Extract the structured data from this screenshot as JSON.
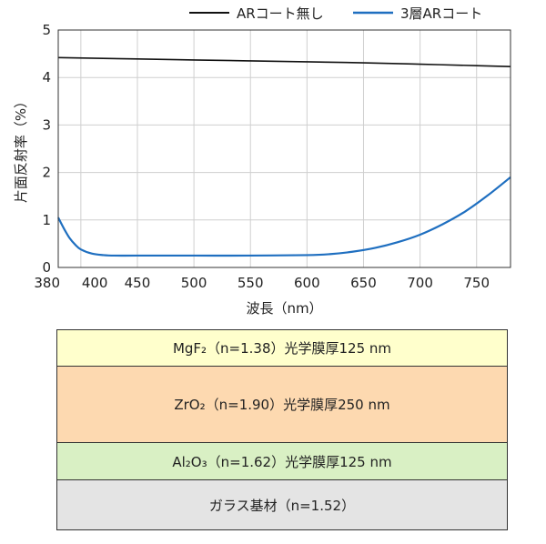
{
  "chart_data": {
    "type": "line",
    "xlabel": "波長（nm）",
    "ylabel": "片面反射率（%）",
    "xlim": [
      380,
      780
    ],
    "ylim": [
      0,
      5
    ],
    "x_ticks": [
      380,
      400,
      450,
      500,
      550,
      600,
      650,
      700,
      750
    ],
    "y_ticks": [
      0,
      1,
      2,
      3,
      4,
      5
    ],
    "grid": true,
    "legend_position": "top",
    "series": [
      {
        "name": "ARコート無し",
        "color": "#111111",
        "x": [
          380,
          450,
          500,
          550,
          600,
          650,
          700,
          750,
          780
        ],
        "y": [
          4.42,
          4.39,
          4.37,
          4.35,
          4.33,
          4.31,
          4.28,
          4.25,
          4.23
        ]
      },
      {
        "name": "3層ARコート",
        "color": "#1f6fc0",
        "x": [
          380,
          385,
          390,
          395,
          400,
          410,
          420,
          430,
          450,
          500,
          550,
          600,
          620,
          640,
          660,
          680,
          700,
          720,
          740,
          760,
          780
        ],
        "y": [
          1.05,
          0.82,
          0.62,
          0.48,
          0.38,
          0.29,
          0.26,
          0.25,
          0.25,
          0.25,
          0.25,
          0.26,
          0.28,
          0.33,
          0.41,
          0.53,
          0.69,
          0.91,
          1.18,
          1.52,
          1.9
        ]
      }
    ]
  },
  "layers": [
    {
      "label": "MgF₂（n=1.38）光学膜厚125 nm",
      "color": "#ffffcc",
      "height": 40
    },
    {
      "label": "ZrO₂（n=1.90）光学膜厚250 nm",
      "color": "#fdd9b0",
      "height": 84
    },
    {
      "label": "Al₂O₃（n=1.62）光学膜厚125 nm",
      "color": "#d9f0c4",
      "height": 41
    },
    {
      "label": "ガラス基材（n=1.52）",
      "color": "#e4e4e4",
      "height": 54
    }
  ]
}
